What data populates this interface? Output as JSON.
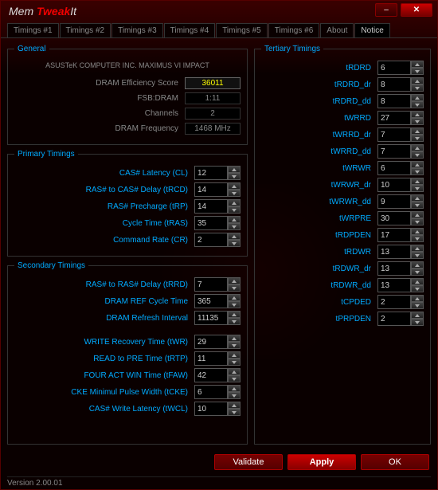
{
  "window": {
    "title_prefix": "Mem ",
    "title_accent": "Tweak",
    "title_suffix": "It"
  },
  "tabs": [
    "Timings #1",
    "Timings #2",
    "Timings #3",
    "Timings #4",
    "Timings #5",
    "Timings #6",
    "About",
    "Notice"
  ],
  "active_tab_index": 7,
  "general": {
    "legend": "General",
    "motherboard": "ASUSTeK COMPUTER INC. MAXIMUS VI IMPACT",
    "rows": [
      {
        "label": "DRAM Efficiency Score",
        "value": "36011",
        "score": true
      },
      {
        "label": "FSB:DRAM",
        "value": "1:11"
      },
      {
        "label": "Channels",
        "value": "2"
      },
      {
        "label": "DRAM Frequency",
        "value": "1468 MHz"
      }
    ]
  },
  "primary": {
    "legend": "Primary Timings",
    "rows": [
      {
        "label": "CAS# Latency (CL)",
        "value": "12"
      },
      {
        "label": "RAS# to CAS# Delay (tRCD)",
        "value": "14"
      },
      {
        "label": "RAS# Precharge (tRP)",
        "value": "14"
      },
      {
        "label": "Cycle Time (tRAS)",
        "value": "35"
      },
      {
        "label": "Command Rate (CR)",
        "value": "2"
      }
    ]
  },
  "secondary": {
    "legend": "Secondary Timings",
    "rows": [
      {
        "label": "RAS# to RAS# Delay (tRRD)",
        "value": "7"
      },
      {
        "label": "DRAM REF Cycle Time",
        "value": "365"
      },
      {
        "label": "DRAM Refresh Interval",
        "value": "11135"
      },
      {
        "label": "WRITE Recovery Time (tWR)",
        "value": "29"
      },
      {
        "label": "READ to PRE Time (tRTP)",
        "value": "11"
      },
      {
        "label": "FOUR ACT WIN Time (tFAW)",
        "value": "42"
      },
      {
        "label": "CKE Minimul Pulse Width (tCKE)",
        "value": "6"
      },
      {
        "label": "CAS# Write Latency (tWCL)",
        "value": "10"
      }
    ]
  },
  "tertiary": {
    "legend": "Tertiary Timings",
    "rows": [
      {
        "label": "tRDRD",
        "value": "6"
      },
      {
        "label": "tRDRD_dr",
        "value": "8"
      },
      {
        "label": "tRDRD_dd",
        "value": "8"
      },
      {
        "label": "tWRRD",
        "value": "27"
      },
      {
        "label": "tWRRD_dr",
        "value": "7"
      },
      {
        "label": "tWRRD_dd",
        "value": "7"
      },
      {
        "label": "tWRWR",
        "value": "6"
      },
      {
        "label": "tWRWR_dr",
        "value": "10"
      },
      {
        "label": "tWRWR_dd",
        "value": "9"
      },
      {
        "label": "tWRPRE",
        "value": "30"
      },
      {
        "label": "tRDPDEN",
        "value": "17"
      },
      {
        "label": "tRDWR",
        "value": "13"
      },
      {
        "label": "tRDWR_dr",
        "value": "13"
      },
      {
        "label": "tRDWR_dd",
        "value": "13"
      },
      {
        "label": "tCPDED",
        "value": "2"
      },
      {
        "label": "tPRPDEN",
        "value": "2"
      }
    ]
  },
  "buttons": {
    "validate": "Validate",
    "apply": "Apply",
    "ok": "OK"
  },
  "version_label": "Version ",
  "version": "2.00.01",
  "colors": {
    "accent": "#0af",
    "score": "#ff0",
    "brand": "#d00"
  }
}
